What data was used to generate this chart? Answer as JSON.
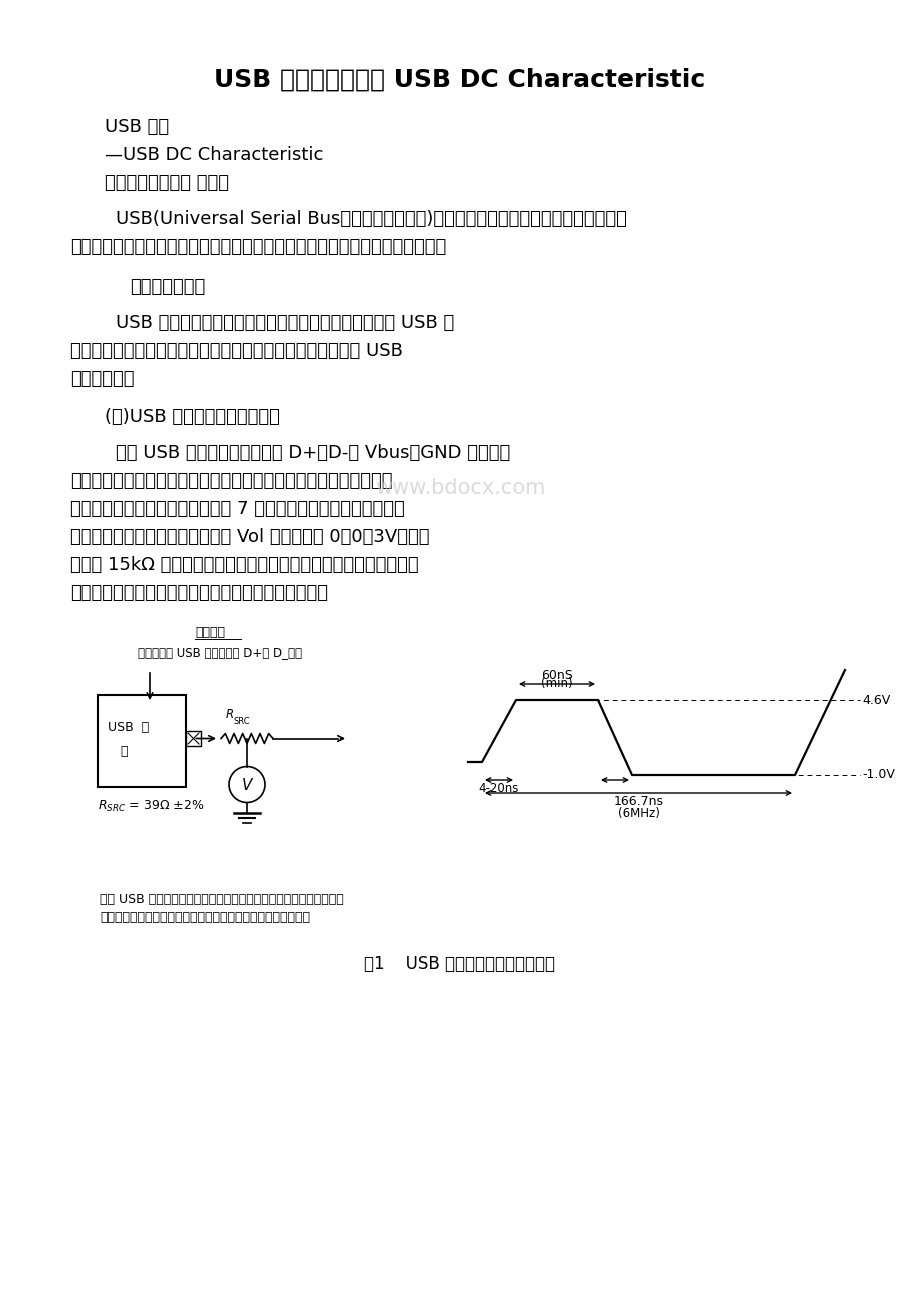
{
  "title": "USB 基础教程第六章 USB DC Characteristic",
  "subtitle1": "USB 技术",
  "subtitle2": "—USB DC Characteristic",
  "subtitle3": "南京大学计算机系 周玉军",
  "watermark": "www.bdocx.com",
  "watermark_color": "#c8c8c8",
  "bg_color": "#ffffff",
  "text_color": "#000000",
  "diagram_label": "设置估价",
  "diagram_note1": "靠近设备的 USB 连接器上的 D+或 D_插口",
  "usb_label1": "USB  设",
  "usb_label2": "备",
  "rsrc_label": "RSRC = 39Ω ±2%",
  "waveform_60ns": "60nS",
  "waveform_min": "(min)",
  "waveform_4_20ns": "4-20ns",
  "waveform_46v": "4.6V",
  "waveform_neg1v": "-1.0V",
  "waveform_166ns": "166.7ns",
  "waveform_6mhz": "(6MHz)",
  "caption_note1": "由于 USB 设备上的输入保护设备可能互相排斥，因此当观察数据的输",
  "caption_note2": "入端口时，可能发现由电压生成器产生的信号波形可能会变形。",
  "fig_caption": "图1    USB 信号发送的最大输出波形"
}
